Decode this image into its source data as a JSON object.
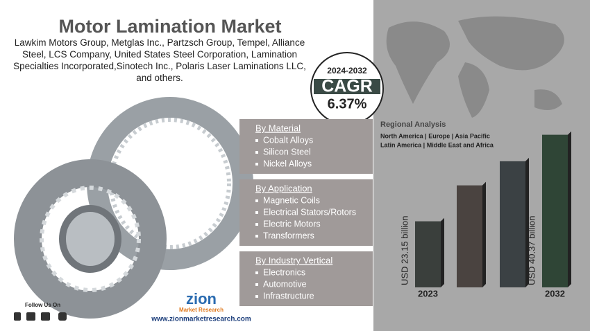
{
  "header": {
    "title": "Motor Lamination Market",
    "companies": "Lawkim Motors Group, Metglas Inc., Partzsch Group, Tempel, Alliance Steel, LCS Company, United States Steel Corporation, Lamination Specialties Incorporated,Sinotech Inc., Polaris Laser Laminations LLC, and others."
  },
  "cagr": {
    "period": "2024-2032",
    "label": "CAGR",
    "value": "6.37%"
  },
  "segments": [
    {
      "title": "By Material",
      "items": [
        "Cobalt Alloys",
        "Silicon Steel",
        "Nickel Alloys"
      ]
    },
    {
      "title": "By Application",
      "items": [
        "Magnetic Coils",
        "Electrical Stators/Rotors",
        "Electric Motors",
        "Transformers"
      ]
    },
    {
      "title": "By Industry Vertical",
      "items": [
        "Electronics",
        "Automotive",
        "Infrastructure"
      ]
    }
  ],
  "regional": {
    "title": "Regional Analysis",
    "line1": "North America | Europe | Asia Pacific",
    "line2": "Latin America | Middle East and Africa"
  },
  "chart_data": {
    "type": "bar",
    "categories": [
      "2023",
      null,
      null,
      "2032"
    ],
    "values": [
      23.15,
      30.3,
      35.1,
      40.37
    ],
    "value_labels": [
      "USD 23.15 billion",
      null,
      null,
      "USD 40.37 billion"
    ],
    "colors": [
      "#3a3f3c",
      "#4a4340",
      "#3b4144",
      "#2f4536"
    ],
    "ylim": [
      10,
      45
    ]
  },
  "footer": {
    "follow": "Follow Us On",
    "logo": "zion",
    "logo_sub": "Market Research",
    "url": "www.zionmarketresearch.com"
  }
}
